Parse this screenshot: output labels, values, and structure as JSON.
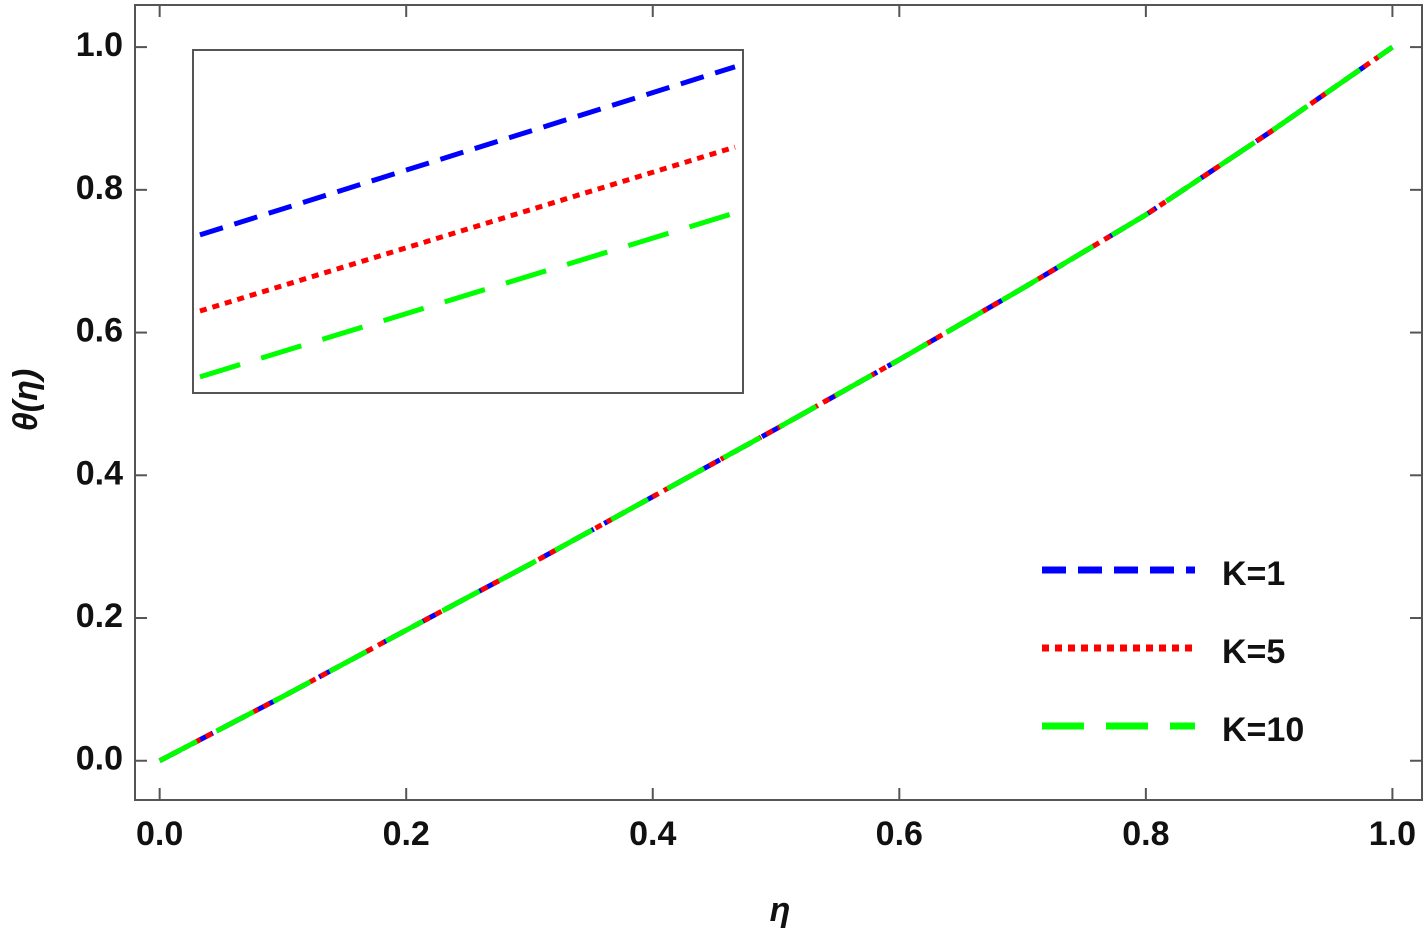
{
  "chart_data": [
    {
      "type": "line",
      "x_label": "η",
      "y_label": "θ(η)",
      "x": [
        0,
        0.1,
        0.2,
        0.3,
        0.4,
        0.5,
        0.6,
        0.7,
        0.8,
        0.9,
        1.0
      ],
      "series": [
        {
          "name": "K=1",
          "color": "#0000ff",
          "dash": "24 12",
          "values": [
            0,
            0.09,
            0.183,
            0.275,
            0.37,
            0.465,
            0.562,
            0.662,
            0.765,
            0.88,
            1.0
          ]
        },
        {
          "name": "K=5",
          "color": "#ff0000",
          "dash": "7 6",
          "values": [
            0,
            0.09,
            0.183,
            0.275,
            0.37,
            0.465,
            0.562,
            0.662,
            0.765,
            0.88,
            1.0
          ]
        },
        {
          "name": "K=10",
          "color": "#00ff00",
          "dash": "42 22",
          "values": [
            0,
            0.09,
            0.183,
            0.275,
            0.37,
            0.465,
            0.562,
            0.662,
            0.765,
            0.88,
            1.0
          ]
        }
      ],
      "xlim": [
        -0.02,
        1.024
      ],
      "ylim": [
        -0.055,
        1.059
      ],
      "xticks": [
        {
          "value": 0,
          "label": "0.0"
        },
        {
          "value": 0.2,
          "label": "0.2"
        },
        {
          "value": 0.4,
          "label": "0.4"
        },
        {
          "value": 0.6,
          "label": "0.6"
        },
        {
          "value": 0.8,
          "label": "0.8"
        },
        {
          "value": 1,
          "label": "1.0"
        }
      ],
      "yticks": [
        {
          "value": 0,
          "label": "0.0"
        },
        {
          "value": 0.2,
          "label": "0.2"
        },
        {
          "value": 0.4,
          "label": "0.4"
        },
        {
          "value": 0.6,
          "label": "0.6"
        },
        {
          "value": 0.8,
          "label": "0.8"
        },
        {
          "value": 1,
          "label": "1.0"
        }
      ],
      "legend": "lower-right"
    },
    {
      "type": "line",
      "x": [
        0,
        1
      ],
      "series": [
        {
          "name": "K=1",
          "color": "#0000ff",
          "dash": "24 12",
          "values": [
            0.461,
            0.951
          ]
        },
        {
          "name": "K=5",
          "color": "#ff0000",
          "dash": "7 6",
          "values": [
            0.239,
            0.717
          ]
        },
        {
          "name": "K=10",
          "color": "#00ff00",
          "dash": "42 22",
          "values": [
            0.047,
            0.525
          ]
        }
      ],
      "xlim": [
        -0.013,
        1.015
      ],
      "ylim": [
        0,
        1
      ]
    }
  ]
}
